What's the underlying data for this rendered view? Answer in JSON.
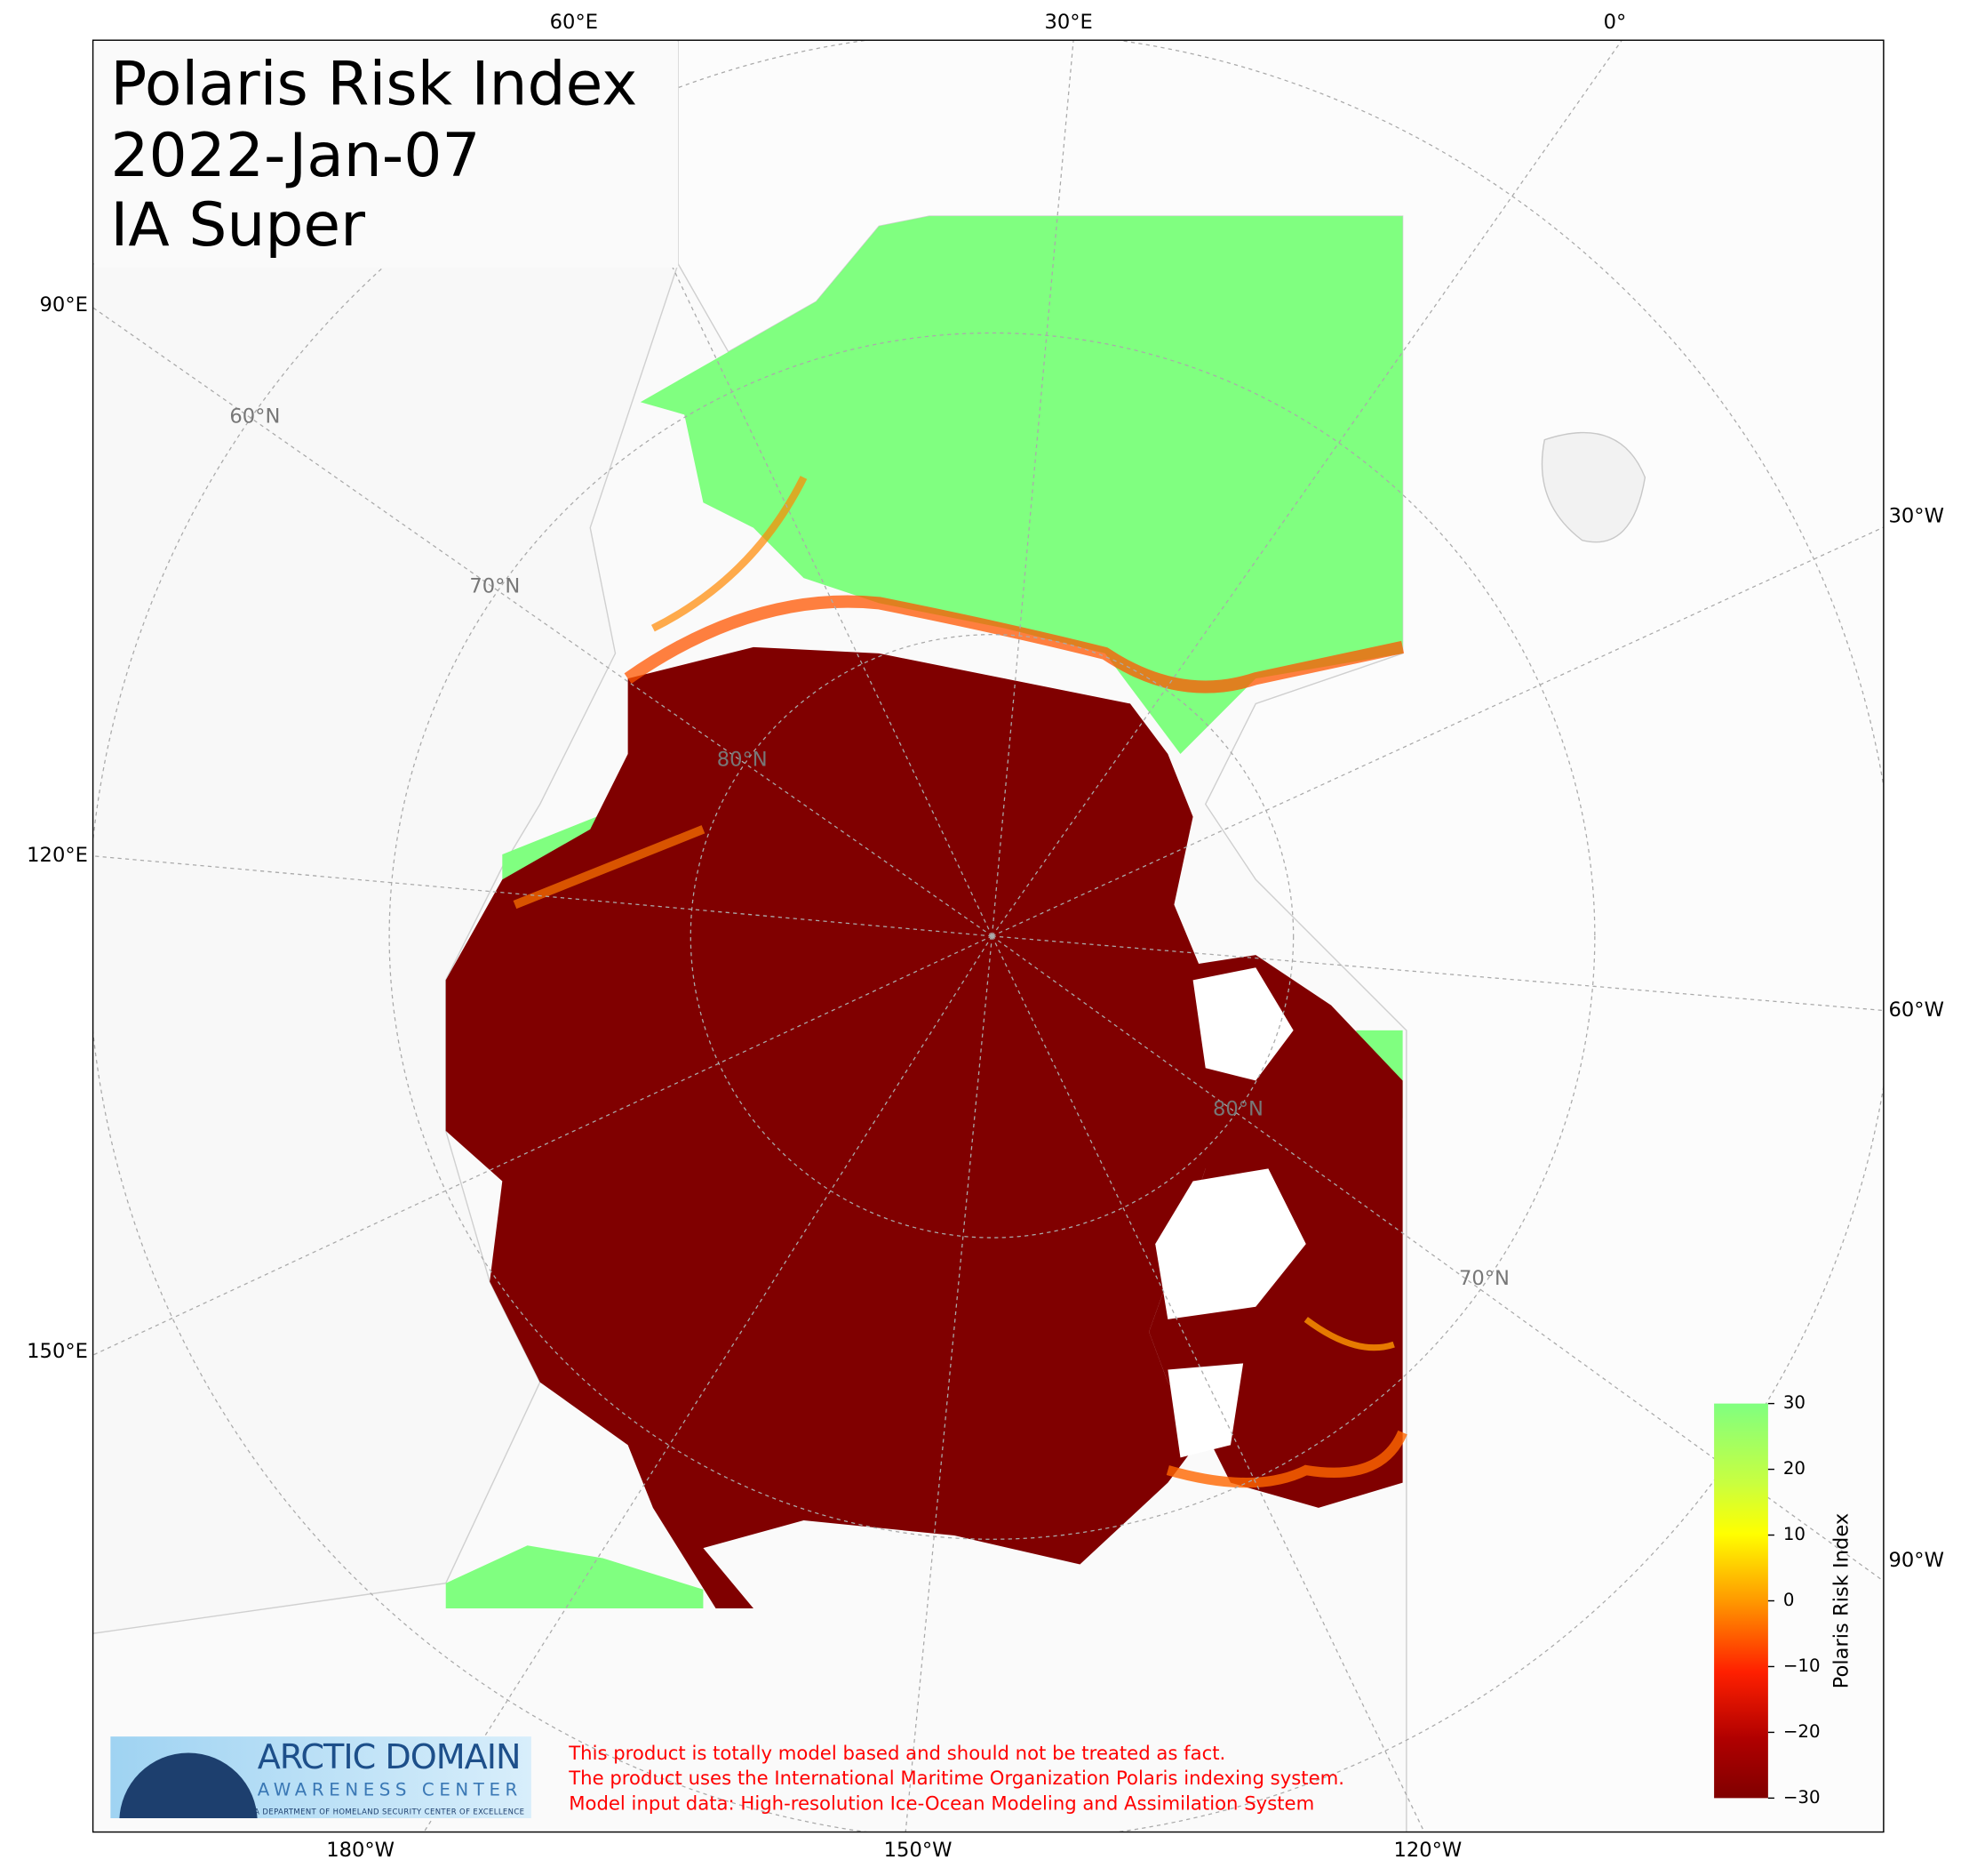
{
  "title": {
    "lines": [
      "Polaris Risk Index",
      "2022-Jan-07",
      "IA Super"
    ]
  },
  "map": {
    "longitude_labels": {
      "top": [
        "60°E",
        "30°E",
        "0°"
      ],
      "left": [
        "90°E",
        "120°E",
        "150°E"
      ],
      "bottom": [
        "180°W",
        "150°W",
        "120°W"
      ],
      "right": [
        "30°W",
        "60°W",
        "90°W"
      ]
    },
    "latitude_labels": [
      "60°N",
      "70°N",
      "80°N",
      "80°N",
      "70°N"
    ]
  },
  "colorbar": {
    "label": "Polaris Risk Index",
    "range": [
      -30,
      30
    ],
    "ticks": [
      30,
      20,
      10,
      0,
      {
        "value": -10,
        "label": "−10"
      },
      {
        "value": -20,
        "label": "−20"
      },
      {
        "value": -30,
        "label": "−30"
      }
    ]
  },
  "logo": {
    "title": "ARCTIC DOMAIN",
    "subtitle": "AWARENESS CENTER",
    "tagline": "A DEPARTMENT OF HOMELAND SECURITY CENTER OF EXCELLENCE"
  },
  "disclaimer": [
    "This product is totally model based and should not be treated as fact.",
    "The product uses the International Maritime Organization Polaris indexing system.",
    "Model input data: High-resolution Ice-Ocean Modeling and Assimilation System"
  ]
}
